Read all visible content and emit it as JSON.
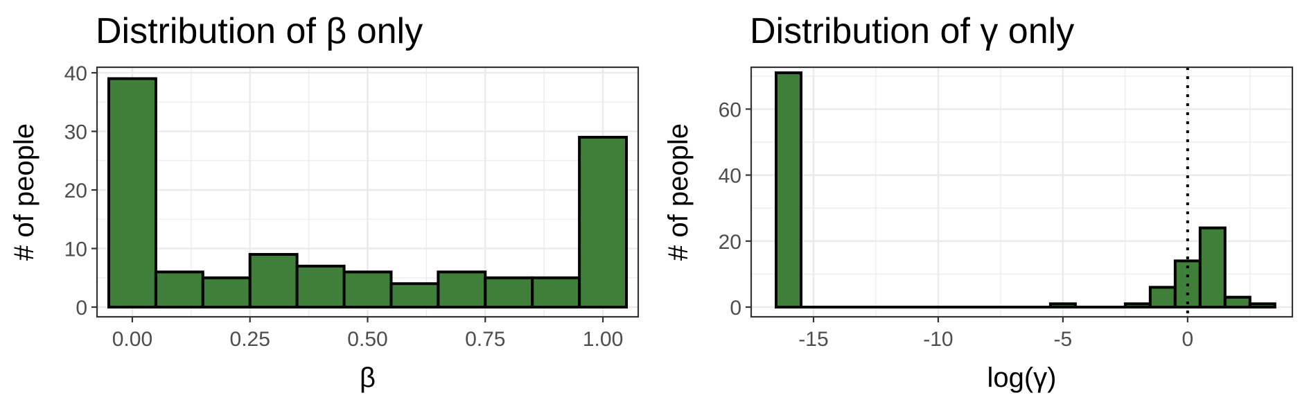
{
  "chart_data": [
    {
      "type": "bar",
      "title": "Distribution of β only",
      "xlabel": "β",
      "ylabel": "# of people",
      "xlim": [
        -0.075,
        1.075
      ],
      "ylim": [
        0,
        40
      ],
      "x_ticks": [
        0.0,
        0.25,
        0.5,
        0.75,
        1.0
      ],
      "x_tick_labels": [
        "0.00",
        "0.25",
        "0.50",
        "0.75",
        "1.00"
      ],
      "y_ticks": [
        0,
        10,
        20,
        30,
        40
      ],
      "y_tick_labels": [
        "0",
        "10",
        "20",
        "30",
        "40"
      ],
      "bin_width": 0.1,
      "bin_centers": [
        0.0,
        0.1,
        0.2,
        0.3,
        0.4,
        0.5,
        0.6,
        0.7,
        0.8,
        0.9,
        1.0
      ],
      "values": [
        39,
        6,
        5,
        9,
        7,
        6,
        4,
        6,
        5,
        5,
        29
      ],
      "bar_color": "#3f7f3a",
      "grid": true
    },
    {
      "type": "bar",
      "title": "Distribution of γ only",
      "xlabel": "log(γ)",
      "ylabel": "# of people",
      "xlim": [
        -17.5,
        4.2
      ],
      "ylim": [
        0,
        71
      ],
      "x_ticks": [
        -15,
        -10,
        -5,
        0
      ],
      "x_tick_labels": [
        "-15",
        "-10",
        "-5",
        "0"
      ],
      "y_ticks": [
        0,
        20,
        40,
        60
      ],
      "y_tick_labels": [
        "0",
        "20",
        "40",
        "60"
      ],
      "bin_width": 1,
      "bin_centers": [
        -16,
        -15,
        -14,
        -13,
        -12,
        -11,
        -10,
        -9,
        -8,
        -7,
        -6,
        -5,
        -4,
        -3,
        -2,
        -1,
        0,
        1,
        2,
        3
      ],
      "values": [
        71,
        0,
        0,
        0,
        0,
        0,
        0,
        0,
        0,
        0,
        0,
        1,
        0,
        0,
        1,
        6,
        14,
        24,
        3,
        1
      ],
      "bar_color": "#3f7f3a",
      "reference_line": {
        "x": 0,
        "style": "dotted"
      },
      "grid": true
    }
  ]
}
